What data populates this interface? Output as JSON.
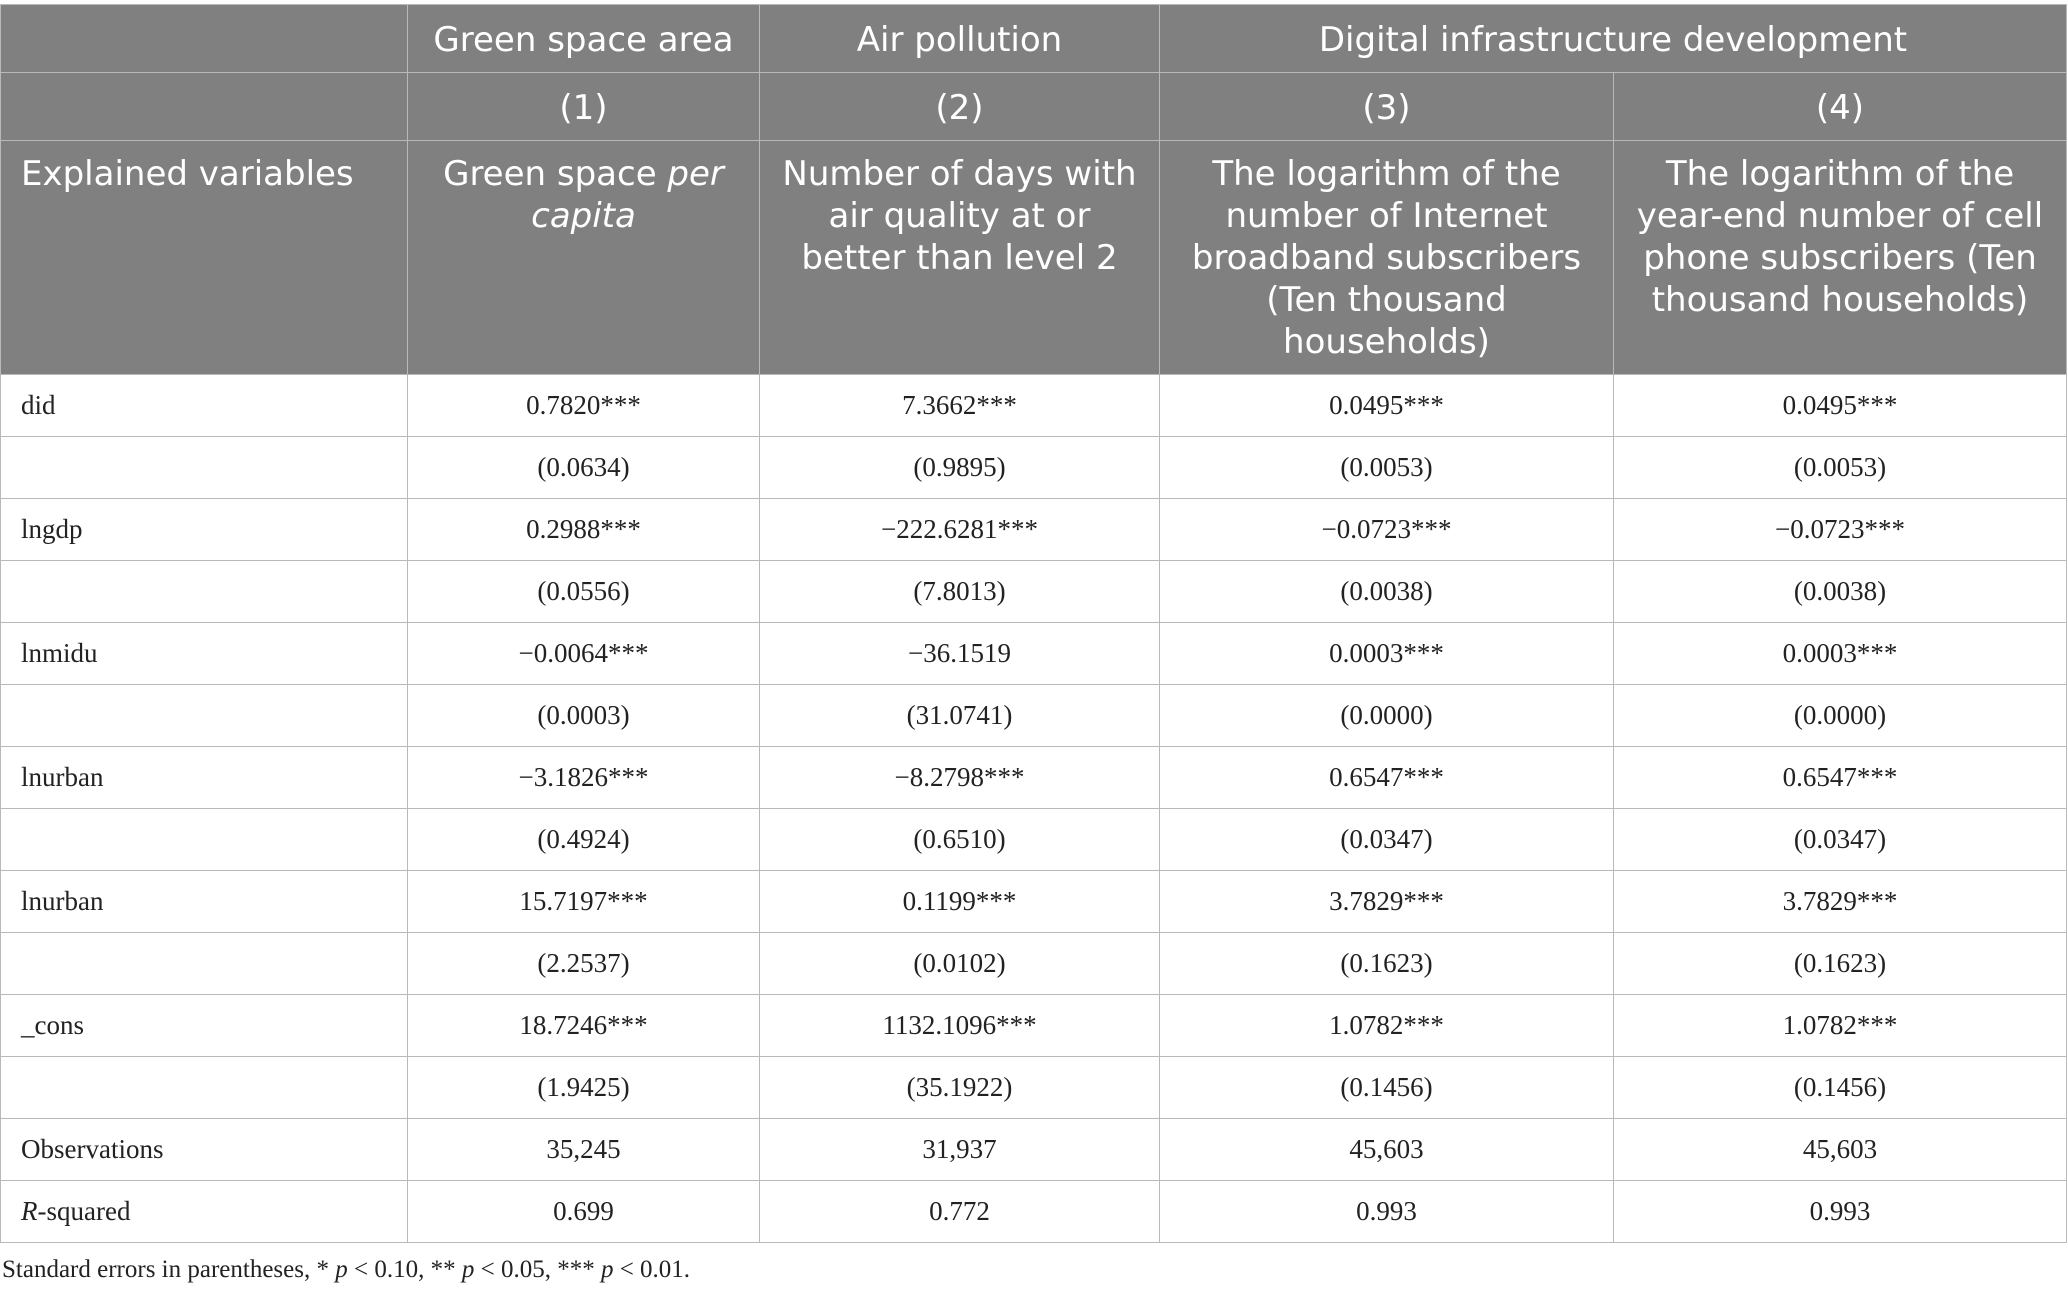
{
  "header": {
    "groups": [
      "",
      "Green space area",
      "Air pollution",
      "Digital infrastructure development"
    ],
    "numbers": [
      "",
      "(1)",
      "(2)",
      "(3)",
      "(4)"
    ],
    "stub_label": "Explained variables",
    "vars": {
      "c1_a": "Green space ",
      "c1_b": "per capita",
      "c2": "Number of days with air quality at or better than level 2",
      "c3": "The logarithm of the number of Internet broadband subscribers (Ten thousand households)",
      "c4": "The logarithm of the year-end number of cell phone subscribers (Ten thousand households)"
    }
  },
  "rows": [
    {
      "label": "did",
      "cells": [
        "0.7820***",
        "7.3662***",
        "0.0495***",
        "0.0495***"
      ]
    },
    {
      "label": "",
      "cells": [
        "(0.0634)",
        "(0.9895)",
        "(0.0053)",
        "(0.0053)"
      ]
    },
    {
      "label": "lngdp",
      "cells": [
        "0.2988***",
        "−222.6281***",
        "−0.0723***",
        "−0.0723***"
      ]
    },
    {
      "label": "",
      "cells": [
        "(0.0556)",
        "(7.8013)",
        "(0.0038)",
        "(0.0038)"
      ]
    },
    {
      "label": "lnmidu",
      "cells": [
        "−0.0064***",
        "−36.1519",
        "0.0003***",
        "0.0003***"
      ]
    },
    {
      "label": "",
      "cells": [
        "(0.0003)",
        "(31.0741)",
        "(0.0000)",
        "(0.0000)"
      ]
    },
    {
      "label": "lnurban",
      "cells": [
        "−3.1826***",
        "−8.2798***",
        "0.6547***",
        "0.6547***"
      ]
    },
    {
      "label": "",
      "cells": [
        "(0.4924)",
        "(0.6510)",
        "(0.0347)",
        "(0.0347)"
      ]
    },
    {
      "label": "lnurban",
      "cells": [
        "15.7197***",
        "0.1199***",
        "3.7829***",
        "3.7829***"
      ]
    },
    {
      "label": "",
      "cells": [
        "(2.2537)",
        "(0.0102)",
        "(0.1623)",
        "(0.1623)"
      ]
    },
    {
      "label": "_cons",
      "cells": [
        "18.7246***",
        "1132.1096***",
        "1.0782***",
        "1.0782***"
      ]
    },
    {
      "label": "",
      "cells": [
        "(1.9425)",
        "(35.1922)",
        "(0.1456)",
        "(0.1456)"
      ]
    },
    {
      "label": "Observations",
      "cells": [
        "35,245",
        "31,937",
        "45,603",
        "45,603"
      ]
    }
  ],
  "rsq": {
    "label_a": "R",
    "label_b": "-squared",
    "cells": [
      "0.699",
      "0.772",
      "0.993",
      "0.993"
    ]
  },
  "footnote": {
    "t1": "Standard errors in parentheses, * ",
    "p": "p",
    "t2": " < 0.10, ** ",
    "t3": " < 0.05, *** ",
    "t4": " < 0.01."
  }
}
